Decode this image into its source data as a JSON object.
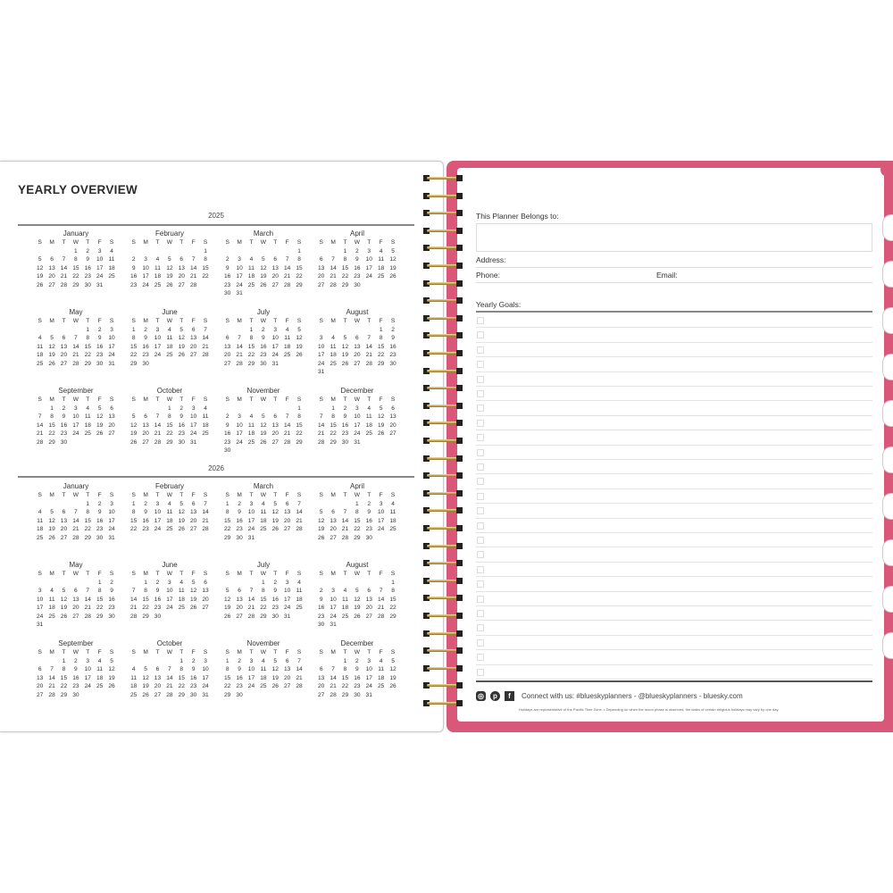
{
  "left_page": {
    "title": "YEARLY OVERVIEW",
    "weekdays": [
      "S",
      "M",
      "T",
      "W",
      "T",
      "F",
      "S"
    ],
    "years": [
      {
        "year": "2025",
        "months": [
          {
            "name": "January",
            "weeks": [
              "1 2 3 4",
              "5 6 7 8 9 10 11",
              "12 13 14 15 16 17 18",
              "19 20 21 22 23 24 25",
              "26 27 28 29 30 31"
            ]
          },
          {
            "name": "February",
            "weeks": [
              "1",
              "2 3 4 5 6 7 8",
              "9 10 11 12 13 14 15",
              "16 17 18 19 20 21 22",
              "23 24 25 26 27 28"
            ]
          },
          {
            "name": "March",
            "weeks": [
              "1",
              "2 3 4 5 6 7 8",
              "9 10 11 12 13 14 15",
              "16 17 18 19 20 21 22",
              "23 24 25 26 27 28 29",
              "30 31"
            ]
          },
          {
            "name": "April",
            "weeks": [
              "1 2 3 4 5",
              "6 7 8 9 10 11 12",
              "13 14 15 16 17 18 19",
              "20 21 22 23 24 25 26",
              "27 28 29 30"
            ]
          },
          {
            "name": "May",
            "weeks": [
              "1 2 3",
              "4 5 6 7 8 9 10",
              "11 12 13 14 15 16 17",
              "18 19 20 21 22 23 24",
              "25 26 27 28 29 30 31"
            ]
          },
          {
            "name": "June",
            "weeks": [
              "1 2 3 4 5 6 7",
              "8 9 10 11 12 13 14",
              "15 16 17 18 19 20 21",
              "22 23 24 25 26 27 28",
              "29 30"
            ]
          },
          {
            "name": "July",
            "weeks": [
              "1 2 3 4 5",
              "6 7 8 9 10 11 12",
              "13 14 15 16 17 18 19",
              "20 21 22 23 24 25 26",
              "27 28 29 30 31"
            ]
          },
          {
            "name": "August",
            "weeks": [
              "1 2",
              "3 4 5 6 7 8 9",
              "10 11 12 13 14 15 16",
              "17 18 19 20 21 22 23",
              "24 25 26 27 28 29 30",
              "31"
            ]
          },
          {
            "name": "September",
            "weeks": [
              "1 2 3 4 5 6",
              "7 8 9 10 11 12 13",
              "14 15 16 17 18 19 20",
              "21 22 23 24 25 26 27",
              "28 29 30"
            ]
          },
          {
            "name": "October",
            "weeks": [
              "1 2 3 4",
              "5 6 7 8 9 10 11",
              "12 13 14 15 16 17 18",
              "19 20 21 22 23 24 25",
              "26 27 28 29 30 31"
            ]
          },
          {
            "name": "November",
            "weeks": [
              "1",
              "2 3 4 5 6 7 8",
              "9 10 11 12 13 14 15",
              "16 17 18 19 20 21 22",
              "23 24 25 26 27 28 29",
              "30"
            ]
          },
          {
            "name": "December",
            "weeks": [
              "1 2 3 4 5 6",
              "7 8 9 10 11 12 13",
              "14 15 16 17 18 19 20",
              "21 22 23 24 25 26 27",
              "28 29 30 31"
            ]
          }
        ]
      },
      {
        "year": "2026",
        "months": [
          {
            "name": "January",
            "weeks": [
              "1 2 3",
              "4 5 6 7 8 9 10",
              "11 12 13 14 15 16 17",
              "18 19 20 21 22 23 24",
              "25 26 27 28 29 30 31"
            ]
          },
          {
            "name": "February",
            "weeks": [
              "1 2 3 4 5 6 7",
              "8 9 10 11 12 13 14",
              "15 16 17 18 19 20 21",
              "22 23 24 25 26 27 28"
            ]
          },
          {
            "name": "March",
            "weeks": [
              "1 2 3 4 5 6 7",
              "8 9 10 11 12 13 14",
              "15 16 17 18 19 20 21",
              "22 23 24 25 26 27 28",
              "29 30 31"
            ]
          },
          {
            "name": "April",
            "weeks": [
              "1 2 3 4",
              "5 6 7 8 9 10 11",
              "12 13 14 15 16 17 18",
              "19 20 21 22 23 24 25",
              "26 27 28 29 30"
            ]
          },
          {
            "name": "May",
            "weeks": [
              "1 2",
              "3 4 5 6 7 8 9",
              "10 11 12 13 14 15 16",
              "17 18 19 20 21 22 23",
              "24 25 26 27 28 29 30",
              "31"
            ]
          },
          {
            "name": "June",
            "weeks": [
              "1 2 3 4 5 6",
              "7 8 9 10 11 12 13",
              "14 15 16 17 18 19 20",
              "21 22 23 24 25 26 27",
              "28 29 30"
            ]
          },
          {
            "name": "July",
            "weeks": [
              "1 2 3 4",
              "5 6 7 8 9 10 11",
              "12 13 14 15 16 17 18",
              "19 20 21 22 23 24 25",
              "26 27 28 29 30 31"
            ]
          },
          {
            "name": "August",
            "weeks": [
              "1",
              "2 3 4 5 6 7 8",
              "9 10 11 12 13 14 15",
              "16 17 18 19 20 21 22",
              "23 24 25 26 27 28 29",
              "30 31"
            ]
          },
          {
            "name": "September",
            "weeks": [
              "1 2 3 4 5",
              "6 7 8 9 10 11 12",
              "13 14 15 16 17 18 19",
              "20 21 22 23 24 25 26",
              "27 28 29 30"
            ]
          },
          {
            "name": "October",
            "weeks": [
              "1 2 3",
              "4 5 6 7 8 9 10",
              "11 12 13 14 15 16 17",
              "18 19 20 21 22 23 24",
              "25 26 27 28 29 30 31"
            ]
          },
          {
            "name": "November",
            "weeks": [
              "1 2 3 4 5 6 7",
              "8 9 10 11 12 13 14",
              "15 16 17 18 19 20 21",
              "22 23 24 25 26 27 28",
              "29 30"
            ]
          },
          {
            "name": "December",
            "weeks": [
              "1 2 3 4 5",
              "6 7 8 9 10 11 12",
              "13 14 15 16 17 18 19",
              "20 21 22 23 24 25 26",
              "27 28 29 30 31"
            ]
          }
        ]
      }
    ]
  },
  "right_page": {
    "belongs_label": "This Planner Belongs to:",
    "address_label": "Address:",
    "phone_label": "Phone:",
    "email_label": "Email:",
    "goals_label": "Yearly Goals:",
    "social_icons": [
      "instagram-icon",
      "pinterest-icon",
      "facebook-icon"
    ],
    "connect_text": "Connect with us: #blueskyplanners - @blueskyplanners - bluesky.com",
    "disclaimer": "Holidays are representative of the Pacific Time Zone.  •  Depending on when the moon phase is observed, the dates of certain religious holidays may vary by one day."
  },
  "colors": {
    "cover": "#d9587a",
    "spiral": "#c9a650"
  }
}
